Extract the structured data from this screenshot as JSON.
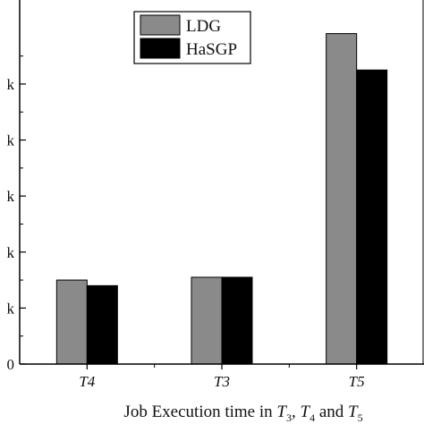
{
  "chart_data": {
    "type": "bar",
    "categories": [
      "T4",
      "T3",
      "T5"
    ],
    "series": [
      {
        "name": "LDG",
        "values": [
          15,
          15.5,
          59
        ],
        "color": "#8a8a8a"
      },
      {
        "name": "HaSGP",
        "values": [
          14,
          15.5,
          52.5
        ],
        "color": "#000000"
      }
    ],
    "y_tick_values": [
      0,
      10,
      20,
      30,
      40,
      50
    ],
    "y_tick_labels": [
      "0",
      "k",
      "k",
      "k",
      "k",
      "k"
    ],
    "ylim": [
      0,
      65
    ],
    "xlabel": {
      "prefix": "Job Execution time in ",
      "t3": "T",
      "t3_sub": "3",
      "sep1": ", ",
      "t4": "T",
      "t4_sub": "4",
      "sep2": " and ",
      "t5": "T",
      "t5_sub": "5"
    },
    "legend_position": "top-center",
    "grid": false
  }
}
